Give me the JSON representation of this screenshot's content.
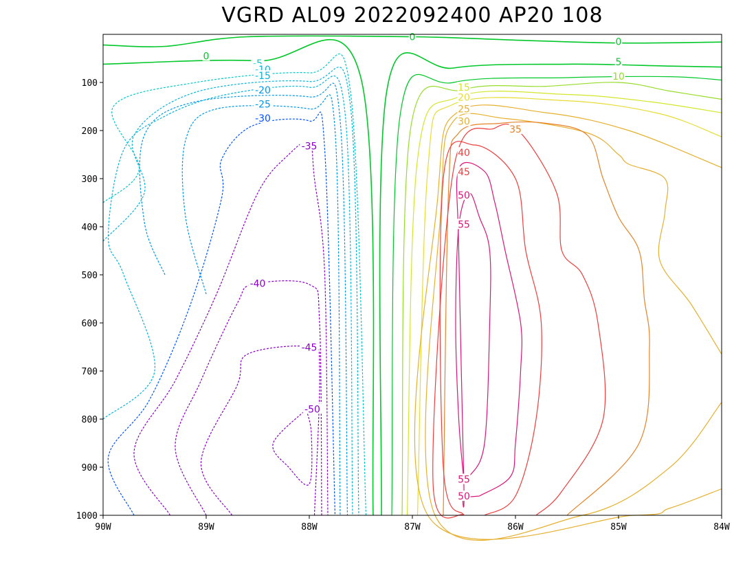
{
  "chart_data": {
    "type": "contour",
    "title": "VGRD AL09 2022092400 AP20 108",
    "xlabel": "",
    "ylabel": "",
    "x_range": [
      -90,
      -84
    ],
    "y_range": [
      0,
      1000
    ],
    "y_inverted": true,
    "x_ticks": [
      "90W",
      "89W",
      "88W",
      "87W",
      "86W",
      "85W",
      "84W"
    ],
    "y_ticks": [
      "100",
      "200",
      "300",
      "400",
      "500",
      "600",
      "700",
      "800",
      "900",
      "1000"
    ],
    "negative_contours_dashed": true,
    "contours": [
      {
        "level": -50,
        "label": "-50",
        "color": "#8a00c8",
        "points": [
          [
            -88.03,
            780
          ],
          [
            -88.35,
            850
          ],
          [
            -88.2,
            900
          ],
          [
            -88.0,
            935
          ],
          [
            -87.98,
            830
          ],
          [
            -88.03,
            780
          ]
        ]
      },
      {
        "level": -45,
        "label": "-45",
        "color": "#8a00c8",
        "points": [
          [
            -88.75,
            1000
          ],
          [
            -89.05,
            890
          ],
          [
            -88.7,
            730
          ],
          [
            -88.6,
            665
          ],
          [
            -88.0,
            650
          ],
          [
            -87.9,
            700
          ],
          [
            -87.95,
            1000
          ]
        ]
      },
      {
        "level": -40,
        "label": "-40",
        "color": "#8a00c8",
        "points": [
          [
            -89.0,
            1000
          ],
          [
            -89.3,
            860
          ],
          [
            -89.05,
            720
          ],
          [
            -88.7,
            560
          ],
          [
            -88.55,
            520
          ],
          [
            -88.0,
            520
          ],
          [
            -87.9,
            600
          ],
          [
            -87.88,
            1000
          ]
        ]
      },
      {
        "level": -35,
        "label": "-35",
        "color": "#8a00c8",
        "points": [
          [
            -89.35,
            1000
          ],
          [
            -89.7,
            870
          ],
          [
            -89.3,
            720
          ],
          [
            -88.9,
            540
          ],
          [
            -88.5,
            330
          ],
          [
            -88.2,
            250
          ],
          [
            -88.0,
            225
          ],
          [
            -87.95,
            300
          ],
          [
            -87.85,
            500
          ],
          [
            -87.82,
            1000
          ]
        ]
      },
      {
        "level": -30,
        "label": "-30",
        "color": "#0050ff",
        "points": [
          [
            -89.7,
            1000
          ],
          [
            -89.95,
            880
          ],
          [
            -89.55,
            760
          ],
          [
            -89.15,
            560
          ],
          [
            -88.85,
            340
          ],
          [
            -88.85,
            260
          ],
          [
            -88.55,
            190
          ],
          [
            -88.0,
            180
          ],
          [
            -87.85,
            240
          ],
          [
            -87.75,
            1000
          ]
        ]
      },
      {
        "level": -25,
        "label": "-25",
        "color": "#0096e6",
        "points": [
          [
            -89.0,
            540
          ],
          [
            -89.2,
            380
          ],
          [
            -89.2,
            220
          ],
          [
            -88.9,
            155
          ],
          [
            -88.0,
            155
          ],
          [
            -87.75,
            200
          ],
          [
            -87.7,
            1000
          ]
        ]
      },
      {
        "level": -20,
        "label": "-20",
        "color": "#0096e6",
        "points": [
          [
            -89.4,
            500
          ],
          [
            -89.6,
            390
          ],
          [
            -89.6,
            210
          ],
          [
            -89.1,
            140
          ],
          [
            -88.0,
            130
          ],
          [
            -87.7,
            180
          ],
          [
            -87.63,
            1000
          ]
        ]
      },
      {
        "level": -15,
        "label": "-15",
        "color": "#00b4dc",
        "points": [
          [
            -90.0,
            800
          ],
          [
            -89.5,
            700
          ],
          [
            -89.8,
            500
          ],
          [
            -89.95,
            420
          ],
          [
            -89.8,
            240
          ],
          [
            -89.4,
            170
          ],
          [
            -88.8,
            125
          ],
          [
            -88.0,
            110
          ],
          [
            -87.65,
            170
          ],
          [
            -87.58,
            1000
          ]
        ]
      },
      {
        "level": -10,
        "label": "-10",
        "color": "#00b4dc",
        "points": [
          [
            -90.0,
            430
          ],
          [
            -89.6,
            330
          ],
          [
            -89.7,
            210
          ],
          [
            -89.1,
            120
          ],
          [
            -88.0,
            98
          ],
          [
            -87.6,
            150
          ],
          [
            -87.52,
            1000
          ]
        ]
      },
      {
        "level": -5,
        "label": "-5",
        "color": "#00c8c8",
        "points": [
          [
            -90.0,
            350
          ],
          [
            -89.65,
            280
          ],
          [
            -89.9,
            150
          ],
          [
            -89.1,
            100
          ],
          [
            -88.0,
            80
          ],
          [
            -87.6,
            120
          ],
          [
            -87.45,
            1000
          ]
        ]
      },
      {
        "level": 0,
        "label": "0",
        "color": "#00c828",
        "points": [
          [
            -90.0,
            62
          ],
          [
            -88.5,
            55
          ],
          [
            -87.5,
            90
          ],
          [
            -87.38,
            1000
          ]
        ]
      },
      {
        "level": 0,
        "label": "0",
        "color": "#00c828",
        "points": [
          [
            -87.3,
            1000
          ],
          [
            -87.25,
            120
          ],
          [
            -86.6,
            70
          ],
          [
            -85.5,
            62
          ],
          [
            -84.5,
            66
          ],
          [
            -84.0,
            68
          ]
        ]
      },
      {
        "level": 0,
        "label": "0",
        "color": "#00c828",
        "points": [
          [
            -90.0,
            22
          ],
          [
            -89.4,
            25
          ],
          [
            -88.6,
            5
          ],
          [
            -87.0,
            5
          ],
          [
            -86.0,
            12
          ],
          [
            -85.0,
            18
          ],
          [
            -84.0,
            16
          ]
        ]
      },
      {
        "level": 5,
        "label": "5",
        "color": "#00c828",
        "points": [
          [
            -87.2,
            1000
          ],
          [
            -87.12,
            170
          ],
          [
            -86.6,
            100
          ],
          [
            -85.5,
            90
          ],
          [
            -84.5,
            88
          ],
          [
            -84.0,
            95
          ]
        ]
      },
      {
        "level": 10,
        "label": "10",
        "color": "#96dc28",
        "points": [
          [
            -87.1,
            1000
          ],
          [
            -87.02,
            200
          ],
          [
            -86.5,
            115
          ],
          [
            -85.7,
            108
          ],
          [
            -85.0,
            100
          ],
          [
            -84.5,
            118
          ],
          [
            -84.0,
            135
          ]
        ]
      },
      {
        "level": 15,
        "label": "15",
        "color": "#d2e628",
        "points": [
          [
            -87.05,
            1000
          ],
          [
            -86.95,
            260
          ],
          [
            -86.55,
            130
          ],
          [
            -85.5,
            125
          ],
          [
            -84.7,
            140
          ],
          [
            -84.0,
            163
          ]
        ]
      },
      {
        "level": 20,
        "label": "20",
        "color": "#e6dc32",
        "points": [
          [
            -86.95,
            1000
          ],
          [
            -86.85,
            280
          ],
          [
            -86.6,
            145
          ],
          [
            -85.5,
            138
          ],
          [
            -84.6,
            165
          ],
          [
            -84.0,
            213
          ]
        ]
      },
      {
        "level": 25,
        "label": "25",
        "color": "#e6af2d",
        "points": [
          [
            -84.0,
            945
          ],
          [
            -84.5,
            985
          ],
          [
            -84.85,
            1000
          ],
          [
            -86.85,
            1000
          ],
          [
            -86.75,
            330
          ],
          [
            -86.55,
            160
          ],
          [
            -85.7,
            163
          ],
          [
            -84.9,
            200
          ],
          [
            -84.0,
            277
          ]
        ]
      },
      {
        "level": 30,
        "label": "30",
        "color": "#e6af2d",
        "points": [
          [
            -84.0,
            665
          ],
          [
            -84.3,
            560
          ],
          [
            -84.6,
            470
          ],
          [
            -84.55,
            370
          ],
          [
            -84.55,
            300
          ],
          [
            -84.9,
            270
          ],
          [
            -85.0,
            250
          ],
          [
            -85.3,
            205
          ],
          [
            -86.1,
            175
          ],
          [
            -86.6,
            180
          ],
          [
            -86.72,
            350
          ],
          [
            -86.78,
            1000
          ],
          [
            -85.35,
            1000
          ],
          [
            -84.5,
            900
          ],
          [
            -84.0,
            765
          ]
        ]
      },
      {
        "level": 35,
        "label": "35",
        "color": "#e68228",
        "points": [
          [
            -86.7,
            1000
          ],
          [
            -86.65,
            330
          ],
          [
            -86.55,
            205
          ],
          [
            -86.15,
            185
          ],
          [
            -85.7,
            185
          ],
          [
            -85.3,
            210
          ],
          [
            -85.15,
            300
          ],
          [
            -85.0,
            380
          ],
          [
            -84.8,
            450
          ],
          [
            -84.75,
            550
          ],
          [
            -84.7,
            650
          ],
          [
            -84.8,
            850
          ],
          [
            -85.5,
            1000
          ]
        ]
      },
      {
        "level": 40,
        "label": "40",
        "color": "#f03c3c",
        "points": [
          [
            -86.5,
            1000
          ],
          [
            -86.8,
            930
          ],
          [
            -86.6,
            280
          ],
          [
            -86.2,
            195
          ],
          [
            -85.95,
            205
          ],
          [
            -85.6,
            330
          ],
          [
            -85.55,
            450
          ],
          [
            -85.35,
            500
          ],
          [
            -85.2,
            600
          ],
          [
            -85.15,
            800
          ],
          [
            -85.55,
            950
          ],
          [
            -85.8,
            1000
          ]
        ]
      },
      {
        "level": 45,
        "label": "45",
        "color": "#f03c3c",
        "points": [
          [
            -86.5,
            1000
          ],
          [
            -86.7,
            900
          ],
          [
            -86.7,
            300
          ],
          [
            -86.4,
            230
          ],
          [
            -86.0,
            300
          ],
          [
            -85.9,
            450
          ],
          [
            -85.75,
            600
          ],
          [
            -85.8,
            800
          ],
          [
            -86.0,
            960
          ],
          [
            -86.3,
            1000
          ]
        ]
      },
      {
        "level": 50,
        "label": "50",
        "color": "#dc1478",
        "points": [
          [
            -86.35,
            960
          ],
          [
            -86.5,
            960
          ],
          [
            -86.5,
            940
          ],
          [
            -86.55,
            450
          ],
          [
            -86.55,
            280
          ],
          [
            -86.3,
            285
          ],
          [
            -86.2,
            350
          ],
          [
            -86.1,
            450
          ],
          [
            -85.95,
            600
          ],
          [
            -85.95,
            700
          ],
          [
            -86.0,
            850
          ],
          [
            -86.05,
            920
          ],
          [
            -86.35,
            960
          ]
        ]
      },
      {
        "level": 55,
        "label": "55",
        "color": "#dc1478",
        "points": [
          [
            -86.5,
            930
          ],
          [
            -86.55,
            800
          ],
          [
            -86.58,
            600
          ],
          [
            -86.55,
            400
          ],
          [
            -86.45,
            330
          ],
          [
            -86.35,
            380
          ],
          [
            -86.25,
            450
          ],
          [
            -86.25,
            600
          ],
          [
            -86.3,
            850
          ],
          [
            -86.45,
            920
          ],
          [
            -86.5,
            930
          ]
        ]
      }
    ],
    "contour_labels": [
      {
        "text": "0",
        "color": "#00c828",
        "at": [
          -87.0,
          5
        ]
      },
      {
        "text": "0",
        "color": "#00c828",
        "at": [
          -89.0,
          45
        ]
      },
      {
        "text": "0",
        "color": "#00c828",
        "at": [
          -85.0,
          15
        ]
      },
      {
        "text": "5",
        "color": "#00c828",
        "at": [
          -85.0,
          57
        ]
      },
      {
        "text": "10",
        "color": "#96dc28",
        "at": [
          -85.0,
          87
        ]
      },
      {
        "text": "-5",
        "color": "#00c8c8",
        "at": [
          -88.5,
          60
        ]
      },
      {
        "text": "-10",
        "color": "#00b4dc",
        "at": [
          -88.45,
          73
        ]
      },
      {
        "text": "-15",
        "color": "#00b4dc",
        "at": [
          -88.45,
          86
        ]
      },
      {
        "text": "-20",
        "color": "#0096e6",
        "at": [
          -88.45,
          116
        ]
      },
      {
        "text": "-25",
        "color": "#0096e6",
        "at": [
          -88.45,
          145
        ]
      },
      {
        "text": "-30",
        "color": "#0050ff",
        "at": [
          -88.45,
          174
        ]
      },
      {
        "text": "-35",
        "color": "#8a00c8",
        "at": [
          -88.0,
          232
        ]
      },
      {
        "text": "-40",
        "color": "#8a00c8",
        "at": [
          -88.5,
          518
        ]
      },
      {
        "text": "-45",
        "color": "#8a00c8",
        "at": [
          -88.0,
          651
        ]
      },
      {
        "text": "-50",
        "color": "#8a00c8",
        "at": [
          -87.97,
          779
        ]
      },
      {
        "text": "15",
        "color": "#d2e628",
        "at": [
          -86.5,
          110
        ]
      },
      {
        "text": "20",
        "color": "#e6dc32",
        "at": [
          -86.5,
          131
        ]
      },
      {
        "text": "25",
        "color": "#e6af2d",
        "at": [
          -86.5,
          155
        ]
      },
      {
        "text": "30",
        "color": "#e6af2d",
        "at": [
          -86.5,
          181
        ]
      },
      {
        "text": "35",
        "color": "#e68228",
        "at": [
          -86.0,
          197
        ]
      },
      {
        "text": "40",
        "color": "#f03c3c",
        "at": [
          -86.5,
          246
        ]
      },
      {
        "text": "45",
        "color": "#f03c3c",
        "at": [
          -86.5,
          286
        ]
      },
      {
        "text": "50",
        "color": "#dc1478",
        "at": [
          -86.5,
          334
        ]
      },
      {
        "text": "55",
        "color": "#dc1478",
        "at": [
          -86.5,
          395
        ]
      },
      {
        "text": "55",
        "color": "#dc1478",
        "at": [
          -86.5,
          925
        ]
      },
      {
        "text": "50",
        "color": "#dc1478",
        "at": [
          -86.5,
          960
        ]
      }
    ]
  }
}
